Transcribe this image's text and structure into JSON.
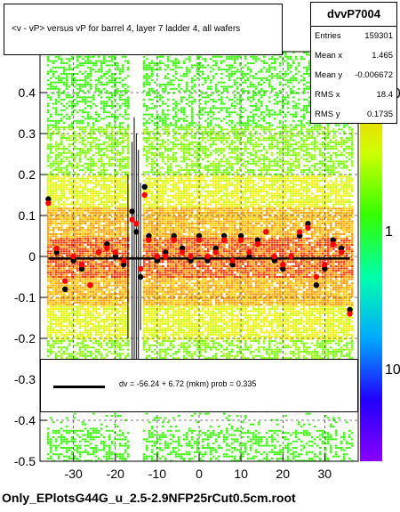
{
  "title": "<v - vP>       versus   vP for barrel 4, layer 7 ladder 4, all wafers",
  "footer": "Only_EPlotsG44G_u_2.5-2.9NFP25rCut0.5cm.root",
  "stats": {
    "name": "dvvP7004",
    "rows": [
      {
        "label": "Entries",
        "value": "159301"
      },
      {
        "label": "Mean x",
        "value": "1.465"
      },
      {
        "label": "Mean y",
        "value": "-0.006672"
      },
      {
        "label": "RMS x",
        "value": "18.4"
      },
      {
        "label": "RMS y",
        "value": "0.1735"
      }
    ]
  },
  "fit": {
    "text": "dv =  -56.24 +   6.72 (mkm) prob = 0.335"
  },
  "palette": {
    "labels": [
      "10",
      "1",
      "10"
    ]
  },
  "chart_data": {
    "type": "scatter",
    "title": "<v - vP>       versus   vP for barrel 4, layer 7 ladder 4, all wafers",
    "xlabel": "",
    "ylabel": "",
    "xlim": [
      -38,
      38
    ],
    "ylim": [
      -0.5,
      0.5
    ],
    "x_ticks": [
      -30,
      -20,
      -10,
      0,
      10,
      20,
      30
    ],
    "y_ticks": [
      0.4,
      0.3,
      0.2,
      0.1,
      0,
      -0.1,
      -0.2,
      -0.3,
      -0.4,
      -0.5
    ],
    "x_tick_labels": [
      "-30",
      "-20",
      "-10",
      "0",
      "10",
      "20",
      "30"
    ],
    "y_tick_labels": [
      "0.4",
      "0.3",
      "0.2",
      "0.1",
      "0",
      "-0.1",
      "-0.2",
      "-0.3",
      "-0.4",
      "-0.5"
    ],
    "grid": true,
    "fit_line": {
      "slope": 0.0,
      "intercept": -0.005
    },
    "series": [
      {
        "marker": "black",
        "x": [
          -36,
          -34,
          -32,
          -30,
          -28,
          -26,
          -24,
          -22,
          -20,
          -18,
          -16,
          -15,
          -14,
          -13,
          -12,
          -10,
          -8,
          -6,
          -4,
          -2,
          0,
          2,
          4,
          6,
          8,
          10,
          12,
          14,
          16,
          18,
          20,
          22,
          24,
          26,
          28,
          30,
          32,
          34,
          36
        ],
        "y": [
          0.14,
          0.01,
          -0.08,
          -0.01,
          -0.03,
          -0.07,
          0.01,
          0.03,
          0.0,
          -0.02,
          0.11,
          0.06,
          -0.05,
          0.17,
          0.05,
          -0.01,
          0.01,
          0.05,
          0.02,
          -0.01,
          0.05,
          -0.01,
          0.02,
          0.05,
          -0.02,
          0.05,
          0.0,
          0.04,
          0.06,
          -0.01,
          -0.03,
          0.0,
          0.05,
          0.08,
          -0.07,
          -0.03,
          0.04,
          0.02,
          -0.13
        ]
      },
      {
        "marker": "red",
        "x": [
          -36,
          -34,
          -32,
          -30,
          -28,
          -26,
          -24,
          -22,
          -20,
          -18,
          -16,
          -15,
          -14,
          -13,
          -12,
          -10,
          -8,
          -6,
          -4,
          -2,
          0,
          2,
          4,
          6,
          8,
          10,
          12,
          14,
          16,
          18,
          20,
          22,
          24,
          26,
          28,
          30,
          32,
          34,
          36
        ],
        "y": [
          0.13,
          0.02,
          -0.06,
          0.0,
          -0.02,
          -0.07,
          0.01,
          0.02,
          0.01,
          -0.01,
          0.09,
          0.08,
          -0.03,
          0.15,
          0.04,
          0.0,
          0.0,
          0.04,
          0.01,
          0.0,
          0.04,
          0.0,
          0.01,
          0.04,
          -0.01,
          0.04,
          0.01,
          0.03,
          0.06,
          0.0,
          -0.02,
          0.0,
          0.06,
          0.07,
          -0.05,
          -0.02,
          0.03,
          0.01,
          -0.14
        ]
      }
    ]
  }
}
